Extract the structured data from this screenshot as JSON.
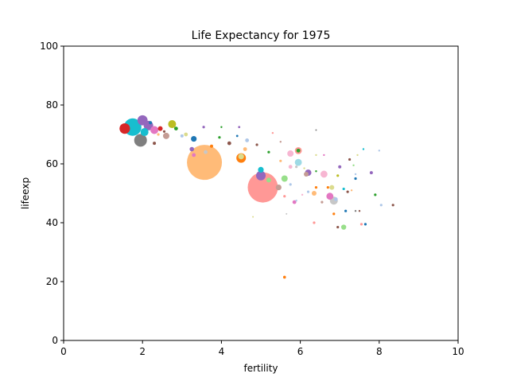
{
  "chart_data": {
    "type": "scatter",
    "title": "Life Expectancy for 1975",
    "xlabel": "fertility",
    "ylabel": "lifeexp",
    "xlim": [
      0,
      10
    ],
    "ylim": [
      0,
      100
    ],
    "xticks": [
      "0",
      "2",
      "4",
      "6",
      "8",
      "10"
    ],
    "yticks": [
      "0",
      "20",
      "40",
      "60",
      "80",
      "100"
    ],
    "grid": false,
    "legend": "none",
    "point_size_encodes": "population",
    "points": [
      {
        "x": 3.57,
        "y": 60.5,
        "s": 11.0,
        "c": "#ffbb78"
      },
      {
        "x": 5.05,
        "y": 52.0,
        "s": 9.5,
        "c": "#ff9896"
      },
      {
        "x": 1.75,
        "y": 72.5,
        "s": 5.5,
        "c": "#17becf"
      },
      {
        "x": 1.95,
        "y": 68.0,
        "s": 4.0,
        "c": "#7f7f7f"
      },
      {
        "x": 1.55,
        "y": 72.0,
        "s": 3.3,
        "c": "#d62728"
      },
      {
        "x": 2.0,
        "y": 74.8,
        "s": 3.2,
        "c": "#9467bd"
      },
      {
        "x": 2.15,
        "y": 73.0,
        "s": 3.0,
        "c": "#9467bd"
      },
      {
        "x": 2.05,
        "y": 70.8,
        "s": 2.5,
        "c": "#17becf"
      },
      {
        "x": 2.3,
        "y": 71.5,
        "s": 2.5,
        "c": "#e377c2"
      },
      {
        "x": 2.75,
        "y": 73.5,
        "s": 2.5,
        "c": "#bcbd22"
      },
      {
        "x": 2.6,
        "y": 69.5,
        "s": 2.0,
        "c": "#c49c94"
      },
      {
        "x": 2.45,
        "y": 72.0,
        "s": 1.5,
        "c": "#d62728"
      },
      {
        "x": 2.85,
        "y": 72.0,
        "s": 1.2,
        "c": "#2ca02c"
      },
      {
        "x": 2.3,
        "y": 67.0,
        "s": 1.0,
        "c": "#8c564b"
      },
      {
        "x": 2.2,
        "y": 74.0,
        "s": 1.0,
        "c": "#1f77b4"
      },
      {
        "x": 3.3,
        "y": 68.5,
        "s": 1.8,
        "c": "#1f77b4"
      },
      {
        "x": 3.1,
        "y": 70.0,
        "s": 1.2,
        "c": "#dbdb8d"
      },
      {
        "x": 3.0,
        "y": 69.5,
        "s": 1.0,
        "c": "#aec7e8"
      },
      {
        "x": 3.25,
        "y": 65.0,
        "s": 1.4,
        "c": "#9467bd"
      },
      {
        "x": 3.3,
        "y": 63.0,
        "s": 1.2,
        "c": "#e377c2"
      },
      {
        "x": 3.6,
        "y": 64.0,
        "s": 1.2,
        "c": "#c7c7c7"
      },
      {
        "x": 3.75,
        "y": 66.0,
        "s": 1.0,
        "c": "#ff7f0e"
      },
      {
        "x": 3.55,
        "y": 72.5,
        "s": 0.8,
        "c": "#9467bd"
      },
      {
        "x": 3.95,
        "y": 69.0,
        "s": 0.8,
        "c": "#2ca02c"
      },
      {
        "x": 4.2,
        "y": 67.0,
        "s": 1.2,
        "c": "#8c564b"
      },
      {
        "x": 4.4,
        "y": 69.5,
        "s": 0.7,
        "c": "#1f77b4"
      },
      {
        "x": 4.45,
        "y": 72.5,
        "s": 0.7,
        "c": "#9467bd"
      },
      {
        "x": 4.65,
        "y": 68.0,
        "s": 1.2,
        "c": "#aec7e8"
      },
      {
        "x": 4.5,
        "y": 62.0,
        "s": 3.0,
        "c": "#ff7f0e"
      },
      {
        "x": 4.5,
        "y": 62.5,
        "s": 1.8,
        "c": "#dbdb8d"
      },
      {
        "x": 4.6,
        "y": 65.0,
        "s": 1.2,
        "c": "#ffbb78"
      },
      {
        "x": 4.9,
        "y": 66.5,
        "s": 0.8,
        "c": "#8c564b"
      },
      {
        "x": 5.0,
        "y": 58.0,
        "s": 1.8,
        "c": "#17becf"
      },
      {
        "x": 5.0,
        "y": 56.0,
        "s": 3.0,
        "c": "#9467bd"
      },
      {
        "x": 5.2,
        "y": 54.5,
        "s": 1.5,
        "c": "#98df8a"
      },
      {
        "x": 5.45,
        "y": 52.0,
        "s": 1.8,
        "c": "#c49c94"
      },
      {
        "x": 5.6,
        "y": 55.0,
        "s": 2.0,
        "c": "#98df8a"
      },
      {
        "x": 5.2,
        "y": 64.0,
        "s": 0.8,
        "c": "#2ca02c"
      },
      {
        "x": 5.3,
        "y": 70.5,
        "s": 0.6,
        "c": "#ff9896"
      },
      {
        "x": 5.5,
        "y": 61.0,
        "s": 0.8,
        "c": "#ffbb78"
      },
      {
        "x": 5.5,
        "y": 67.5,
        "s": 0.6,
        "c": "#c49c94"
      },
      {
        "x": 5.75,
        "y": 63.5,
        "s": 2.0,
        "c": "#f7b6d2"
      },
      {
        "x": 5.95,
        "y": 64.5,
        "s": 2.2,
        "c": "#ff9896"
      },
      {
        "x": 5.95,
        "y": 64.5,
        "s": 1.2,
        "c": "#2ca02c"
      },
      {
        "x": 5.95,
        "y": 60.5,
        "s": 2.2,
        "c": "#9edae5"
      },
      {
        "x": 5.75,
        "y": 59.0,
        "s": 1.2,
        "c": "#f7b6d2"
      },
      {
        "x": 5.9,
        "y": 59.0,
        "s": 0.8,
        "c": "#c7c7c7"
      },
      {
        "x": 6.1,
        "y": 58.5,
        "s": 0.6,
        "c": "#dbdb8d"
      },
      {
        "x": 6.2,
        "y": 57.0,
        "s": 2.0,
        "c": "#9467bd"
      },
      {
        "x": 6.15,
        "y": 56.5,
        "s": 1.5,
        "c": "#c49c94"
      },
      {
        "x": 5.75,
        "y": 53.0,
        "s": 0.8,
        "c": "#aec7e8"
      },
      {
        "x": 5.6,
        "y": 49.0,
        "s": 0.8,
        "c": "#ff9896"
      },
      {
        "x": 5.85,
        "y": 47.0,
        "s": 1.2,
        "c": "#e377c2"
      },
      {
        "x": 5.9,
        "y": 47.5,
        "s": 0.6,
        "c": "#aec7e8"
      },
      {
        "x": 6.05,
        "y": 49.5,
        "s": 0.6,
        "c": "#f7b6d2"
      },
      {
        "x": 6.2,
        "y": 50.5,
        "s": 0.8,
        "c": "#aec7e8"
      },
      {
        "x": 6.35,
        "y": 50.0,
        "s": 1.5,
        "c": "#ffbb78"
      },
      {
        "x": 6.4,
        "y": 52.0,
        "s": 0.8,
        "c": "#ff7f0e"
      },
      {
        "x": 6.4,
        "y": 57.5,
        "s": 0.6,
        "c": "#2ca02c"
      },
      {
        "x": 6.4,
        "y": 63.0,
        "s": 0.6,
        "c": "#dbdb8d"
      },
      {
        "x": 6.35,
        "y": 40.0,
        "s": 0.8,
        "c": "#ff9896"
      },
      {
        "x": 6.55,
        "y": 47.0,
        "s": 0.8,
        "c": "#c49c94"
      },
      {
        "x": 6.6,
        "y": 56.5,
        "s": 2.2,
        "c": "#f7b6d2"
      },
      {
        "x": 6.6,
        "y": 63.0,
        "s": 0.6,
        "c": "#e377c2"
      },
      {
        "x": 6.7,
        "y": 52.0,
        "s": 0.8,
        "c": "#ff7f0e"
      },
      {
        "x": 6.8,
        "y": 52.0,
        "s": 1.5,
        "c": "#dbdb8d"
      },
      {
        "x": 6.75,
        "y": 49.0,
        "s": 2.2,
        "c": "#e377c2"
      },
      {
        "x": 6.85,
        "y": 47.5,
        "s": 2.5,
        "c": "#c7c7c7"
      },
      {
        "x": 6.9,
        "y": 48.0,
        "s": 1.2,
        "c": "#aec7e8"
      },
      {
        "x": 6.85,
        "y": 43.0,
        "s": 0.8,
        "c": "#ff7f0e"
      },
      {
        "x": 6.95,
        "y": 56.0,
        "s": 0.8,
        "c": "#bcbd22"
      },
      {
        "x": 6.95,
        "y": 38.5,
        "s": 0.8,
        "c": "#8c564b"
      },
      {
        "x": 7.0,
        "y": 59.0,
        "s": 1.0,
        "c": "#9467bd"
      },
      {
        "x": 7.1,
        "y": 38.5,
        "s": 1.6,
        "c": "#98df8a"
      },
      {
        "x": 7.15,
        "y": 44.0,
        "s": 0.8,
        "c": "#1f77b4"
      },
      {
        "x": 7.1,
        "y": 51.5,
        "s": 0.8,
        "c": "#17becf"
      },
      {
        "x": 7.2,
        "y": 50.5,
        "s": 0.8,
        "c": "#8c564b"
      },
      {
        "x": 7.25,
        "y": 61.5,
        "s": 0.8,
        "c": "#8c564b"
      },
      {
        "x": 7.3,
        "y": 51.0,
        "s": 0.6,
        "c": "#ffbb78"
      },
      {
        "x": 7.35,
        "y": 59.5,
        "s": 0.6,
        "c": "#98df8a"
      },
      {
        "x": 7.4,
        "y": 55.0,
        "s": 0.8,
        "c": "#1f77b4"
      },
      {
        "x": 7.4,
        "y": 56.5,
        "s": 0.6,
        "c": "#aec7e8"
      },
      {
        "x": 7.45,
        "y": 63.0,
        "s": 0.6,
        "c": "#dbdb8d"
      },
      {
        "x": 7.4,
        "y": 44.0,
        "s": 0.6,
        "c": "#7f7f7f"
      },
      {
        "x": 7.5,
        "y": 44.0,
        "s": 0.6,
        "c": "#8c564b"
      },
      {
        "x": 7.55,
        "y": 39.5,
        "s": 0.8,
        "c": "#ff9896"
      },
      {
        "x": 7.65,
        "y": 39.5,
        "s": 0.8,
        "c": "#1f77b4"
      },
      {
        "x": 7.6,
        "y": 65.0,
        "s": 0.6,
        "c": "#17becf"
      },
      {
        "x": 7.8,
        "y": 57.0,
        "s": 1.0,
        "c": "#9467bd"
      },
      {
        "x": 7.9,
        "y": 49.5,
        "s": 0.8,
        "c": "#2ca02c"
      },
      {
        "x": 8.0,
        "y": 64.5,
        "s": 0.6,
        "c": "#aec7e8"
      },
      {
        "x": 8.05,
        "y": 46.0,
        "s": 0.8,
        "c": "#aec7e8"
      },
      {
        "x": 8.35,
        "y": 46.0,
        "s": 0.8,
        "c": "#8c564b"
      },
      {
        "x": 5.6,
        "y": 21.5,
        "s": 0.9,
        "c": "#ff7f0e"
      },
      {
        "x": 4.8,
        "y": 42.0,
        "s": 0.5,
        "c": "#dbdb8d"
      },
      {
        "x": 5.65,
        "y": 43.0,
        "s": 0.5,
        "c": "#c7c7c7"
      },
      {
        "x": 6.4,
        "y": 71.5,
        "s": 0.5,
        "c": "#7f7f7f"
      },
      {
        "x": 2.55,
        "y": 71.0,
        "s": 0.8,
        "c": "#8c564b"
      },
      {
        "x": 2.4,
        "y": 70.0,
        "s": 0.8,
        "c": "#ffbb78"
      },
      {
        "x": 4.0,
        "y": 72.5,
        "s": 0.6,
        "c": "#2ca02c"
      }
    ]
  }
}
